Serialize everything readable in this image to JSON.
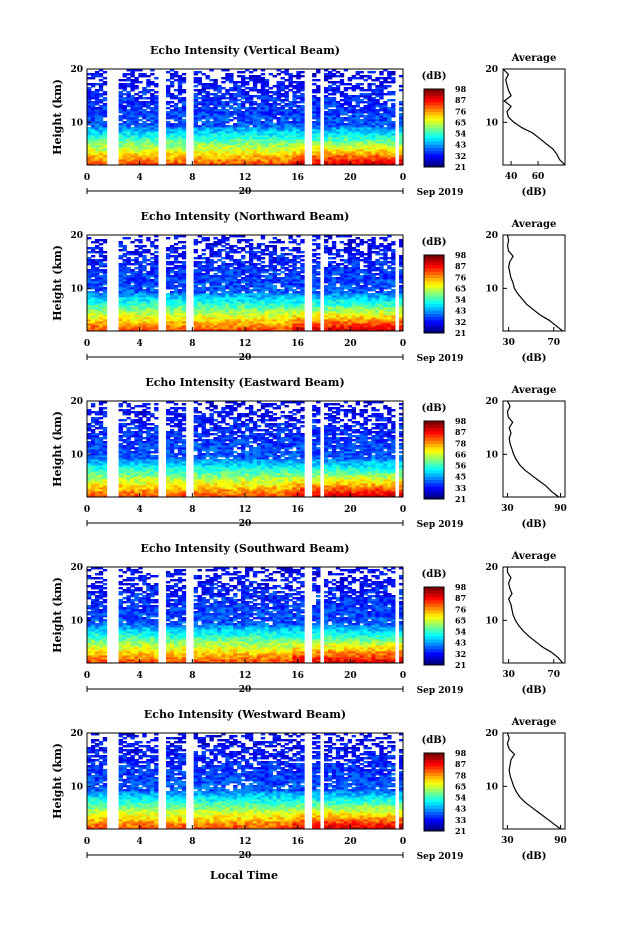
{
  "figure": {
    "xlabel_bottom": "Local Time",
    "date_label": "Sep 2019",
    "day_label": "20",
    "colorbar_unit": "(dB)",
    "average_title": "Average",
    "average_xlabel": "(dB)",
    "ylabel": "Height (km)"
  },
  "chart_data": [
    {
      "type": "heatmap",
      "title": "Echo Intensity (Vertical Beam)",
      "xlabel": "",
      "ylabel": "Height (km)",
      "x_ticks": [
        "0",
        "4",
        "8",
        "12",
        "16",
        "20",
        "0"
      ],
      "xlim": [
        0,
        24
      ],
      "y_ticks": [
        "10",
        "20"
      ],
      "ylim": [
        2,
        20
      ],
      "colorbar": {
        "label": "(dB)",
        "ticks": [
          "21",
          "32",
          "43",
          "54",
          "65",
          "76",
          "87",
          "98"
        ]
      },
      "gap_hours": [
        1.6,
        2.1,
        5.7,
        7.8,
        16.8,
        17.8,
        23.5
      ],
      "surface_boost_after_hour": 15.5,
      "average_profile": {
        "xlim": [
          34,
          80
        ],
        "x_ticks": [
          "40",
          "60"
        ],
        "y_ticks": [
          "10",
          "20"
        ],
        "ylim": [
          2,
          20
        ],
        "heights_km": [
          2,
          3,
          4,
          5,
          6,
          7,
          8,
          9,
          10,
          11,
          12,
          13,
          14,
          15,
          16,
          17,
          18,
          19,
          20
        ],
        "values_db": [
          80,
          76,
          74,
          71,
          66,
          61,
          56,
          48,
          42,
          38,
          37,
          40,
          35,
          40,
          38,
          37,
          36,
          38,
          34
        ]
      }
    },
    {
      "type": "heatmap",
      "title": "Echo Intensity (Northward Beam)",
      "xlabel": "",
      "ylabel": "Height (km)",
      "x_ticks": [
        "0",
        "4",
        "8",
        "12",
        "16",
        "20",
        "0"
      ],
      "xlim": [
        0,
        24
      ],
      "y_ticks": [
        "10",
        "20"
      ],
      "ylim": [
        2,
        20
      ],
      "colorbar": {
        "label": "(dB)",
        "ticks": [
          "21",
          "32",
          "43",
          "54",
          "65",
          "76",
          "87",
          "98"
        ]
      },
      "gap_hours": [
        1.6,
        2.1,
        5.7,
        7.8,
        16.8,
        17.8,
        23.5
      ],
      "surface_boost_after_hour": 15.5,
      "average_profile": {
        "xlim": [
          25,
          80
        ],
        "x_ticks": [
          "30",
          "70"
        ],
        "y_ticks": [
          "10",
          "20"
        ],
        "ylim": [
          2,
          20
        ],
        "heights_km": [
          2,
          3,
          4,
          5,
          6,
          7,
          8,
          9,
          10,
          11,
          12,
          13,
          14,
          15,
          16,
          17,
          18,
          19,
          20
        ],
        "values_db": [
          78,
          72,
          66,
          58,
          52,
          46,
          42,
          38,
          35,
          34,
          32,
          31,
          30,
          31,
          34,
          30,
          29,
          30,
          29
        ]
      }
    },
    {
      "type": "heatmap",
      "title": "Echo Intensity (Eastward Beam)",
      "xlabel": "",
      "ylabel": "Height (km)",
      "x_ticks": [
        "0",
        "4",
        "8",
        "12",
        "16",
        "20",
        "0"
      ],
      "xlim": [
        0,
        24
      ],
      "y_ticks": [
        "10",
        "20"
      ],
      "ylim": [
        2,
        20
      ],
      "colorbar": {
        "label": "(dB)",
        "ticks": [
          "21",
          "33",
          "45",
          "56",
          "66",
          "78",
          "87",
          "98"
        ]
      },
      "gap_hours": [
        1.6,
        2.1,
        5.7,
        7.8,
        16.8,
        17.8,
        23.5
      ],
      "surface_boost_after_hour": 15.5,
      "average_profile": {
        "xlim": [
          25,
          95
        ],
        "x_ticks": [
          "30",
          "90"
        ],
        "y_ticks": [
          "10",
          "20"
        ],
        "ylim": [
          2,
          20
        ],
        "heights_km": [
          2,
          3,
          4,
          5,
          6,
          7,
          8,
          9,
          10,
          11,
          12,
          13,
          14,
          15,
          16,
          17,
          18,
          19,
          20
        ],
        "values_db": [
          88,
          80,
          74,
          66,
          58,
          50,
          44,
          40,
          37,
          35,
          33,
          32,
          34,
          32,
          36,
          31,
          30,
          33,
          30
        ]
      }
    },
    {
      "type": "heatmap",
      "title": "Echo Intensity (Southward Beam)",
      "xlabel": "",
      "ylabel": "Height (km)",
      "x_ticks": [
        "0",
        "4",
        "8",
        "12",
        "16",
        "20",
        "0"
      ],
      "xlim": [
        0,
        24
      ],
      "y_ticks": [
        "10",
        "20"
      ],
      "ylim": [
        2,
        20
      ],
      "colorbar": {
        "label": "(dB)",
        "ticks": [
          "21",
          "32",
          "43",
          "54",
          "65",
          "76",
          "87",
          "98"
        ]
      },
      "gap_hours": [
        1.6,
        2.1,
        5.7,
        7.8,
        16.8,
        17.8,
        23.5
      ],
      "surface_boost_after_hour": 15.5,
      "average_profile": {
        "xlim": [
          25,
          80
        ],
        "x_ticks": [
          "30",
          "70"
        ],
        "y_ticks": [
          "10",
          "20"
        ],
        "ylim": [
          2,
          20
        ],
        "heights_km": [
          2,
          3,
          4,
          5,
          6,
          7,
          8,
          9,
          10,
          11,
          12,
          13,
          14,
          15,
          16,
          17,
          18,
          19,
          20
        ],
        "values_db": [
          78,
          74,
          68,
          60,
          54,
          48,
          43,
          39,
          36,
          34,
          33,
          32,
          30,
          33,
          31,
          30,
          32,
          29,
          29
        ]
      }
    },
    {
      "type": "heatmap",
      "title": "Echo Intensity (Westward Beam)",
      "xlabel": "Local Time",
      "ylabel": "Height (km)",
      "x_ticks": [
        "0",
        "4",
        "8",
        "12",
        "16",
        "20",
        "0"
      ],
      "xlim": [
        0,
        24
      ],
      "y_ticks": [
        "10",
        "20"
      ],
      "ylim": [
        2,
        20
      ],
      "colorbar": {
        "label": "(dB)",
        "ticks": [
          "21",
          "33",
          "43",
          "54",
          "65",
          "78",
          "87",
          "98"
        ]
      },
      "gap_hours": [
        1.6,
        2.1,
        5.7,
        7.8,
        16.8,
        17.8,
        23.5
      ],
      "surface_boost_after_hour": 15.5,
      "average_profile": {
        "xlim": [
          25,
          95
        ],
        "x_ticks": [
          "30",
          "90"
        ],
        "y_ticks": [
          "10",
          "20"
        ],
        "ylim": [
          2,
          20
        ],
        "heights_km": [
          2,
          3,
          4,
          5,
          6,
          7,
          8,
          9,
          10,
          11,
          12,
          13,
          14,
          15,
          16,
          17,
          18,
          19,
          20
        ],
        "values_db": [
          90,
          82,
          74,
          66,
          58,
          50,
          44,
          40,
          37,
          35,
          33,
          32,
          33,
          34,
          38,
          32,
          30,
          32,
          30
        ]
      }
    }
  ]
}
